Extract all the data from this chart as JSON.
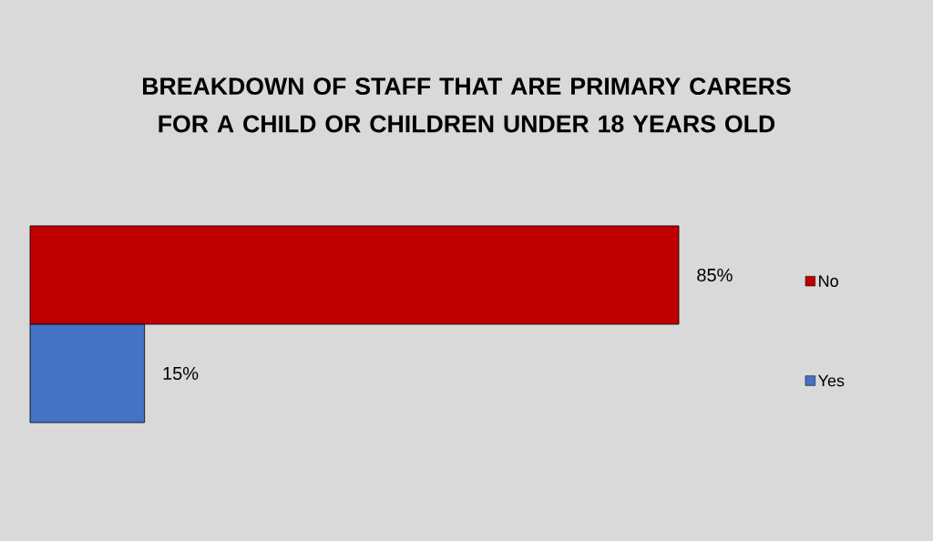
{
  "chart_data": {
    "type": "bar",
    "orientation": "horizontal",
    "title": "BREAKDOWN OF STAFF THAT ARE PRIMARY CARERS FOR A CHILD OR CHILDREN UNDER 18 YEARS OLD",
    "categories": [
      null
    ],
    "series": [
      {
        "name": "No",
        "color": "#c00000",
        "values": [
          85
        ],
        "value_labels": [
          "85%"
        ]
      },
      {
        "name": "Yes",
        "color": "#4472c4",
        "values": [
          15
        ],
        "value_labels": [
          "15%"
        ]
      }
    ],
    "legend": "right"
  }
}
